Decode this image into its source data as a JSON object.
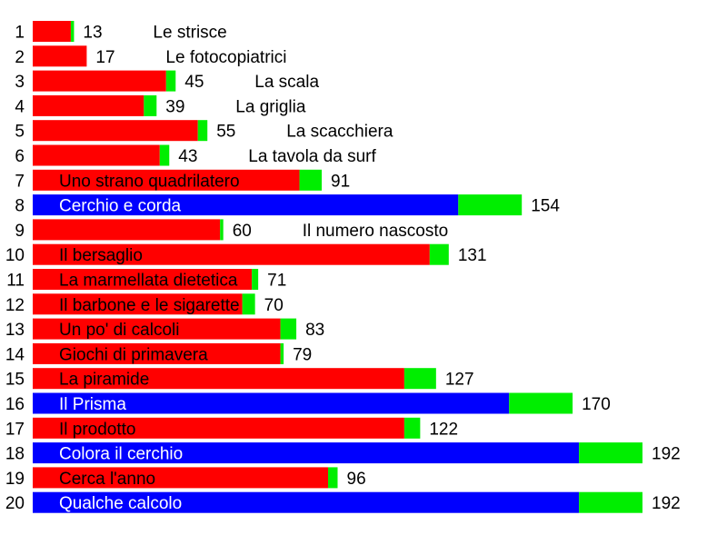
{
  "colors": {
    "red": "#ff0000",
    "blue": "#0000ff",
    "green": "#00ee00",
    "text_dark": "#000000",
    "text_light": "#ffffff"
  },
  "chart_data": {
    "type": "bar",
    "orientation": "horizontal",
    "stacked": true,
    "grid": false,
    "legend": "none",
    "scale_max": 192,
    "rows": [
      {
        "index": "1",
        "label": "Le strisce",
        "base": 12,
        "extra": 1,
        "total": 13,
        "base_color": "red"
      },
      {
        "index": "2",
        "label": "Le fotocopiatrici",
        "base": 17,
        "extra": 0,
        "total": 17,
        "base_color": "red"
      },
      {
        "index": "3",
        "label": "La scala",
        "base": 42,
        "extra": 3,
        "total": 45,
        "base_color": "red"
      },
      {
        "index": "4",
        "label": "La griglia",
        "base": 35,
        "extra": 4,
        "total": 39,
        "base_color": "red"
      },
      {
        "index": "5",
        "label": "La scacchiera",
        "base": 52,
        "extra": 3,
        "total": 55,
        "base_color": "red"
      },
      {
        "index": "6",
        "label": "La tavola da surf",
        "base": 40,
        "extra": 3,
        "total": 43,
        "base_color": "red"
      },
      {
        "index": "7",
        "label": "Uno strano quadrilatero",
        "base": 84,
        "extra": 7,
        "total": 91,
        "base_color": "red"
      },
      {
        "index": "8",
        "label": "Cerchio e corda",
        "base": 134,
        "extra": 20,
        "total": 154,
        "base_color": "blue"
      },
      {
        "index": "9",
        "label": "Il numero nascosto",
        "base": 59,
        "extra": 1,
        "total": 60,
        "base_color": "red"
      },
      {
        "index": "10",
        "label": "Il bersaglio",
        "base": 125,
        "extra": 6,
        "total": 131,
        "base_color": "red"
      },
      {
        "index": "11",
        "label": "La marmellata dietetica",
        "base": 69,
        "extra": 2,
        "total": 71,
        "base_color": "red"
      },
      {
        "index": "12",
        "label": "Il barbone e le sigarette",
        "base": 66,
        "extra": 4,
        "total": 70,
        "base_color": "red"
      },
      {
        "index": "13",
        "label": "Un po' di calcoli",
        "base": 78,
        "extra": 5,
        "total": 83,
        "base_color": "red"
      },
      {
        "index": "14",
        "label": "Giochi di primavera",
        "base": 78,
        "extra": 1,
        "total": 79,
        "base_color": "red"
      },
      {
        "index": "15",
        "label": "La piramide",
        "base": 117,
        "extra": 10,
        "total": 127,
        "base_color": "red"
      },
      {
        "index": "16",
        "label": "Il Prisma",
        "base": 150,
        "extra": 20,
        "total": 170,
        "base_color": "blue"
      },
      {
        "index": "17",
        "label": "Il prodotto",
        "base": 117,
        "extra": 5,
        "total": 122,
        "base_color": "red"
      },
      {
        "index": "18",
        "label": "Colora il cerchio",
        "base": 172,
        "extra": 20,
        "total": 192,
        "base_color": "blue"
      },
      {
        "index": "19",
        "label": "Cerca l'anno",
        "base": 93,
        "extra": 3,
        "total": 96,
        "base_color": "red"
      },
      {
        "index": "20",
        "label": "Qualche calcolo",
        "base": 172,
        "extra": 20,
        "total": 192,
        "base_color": "blue"
      }
    ]
  }
}
